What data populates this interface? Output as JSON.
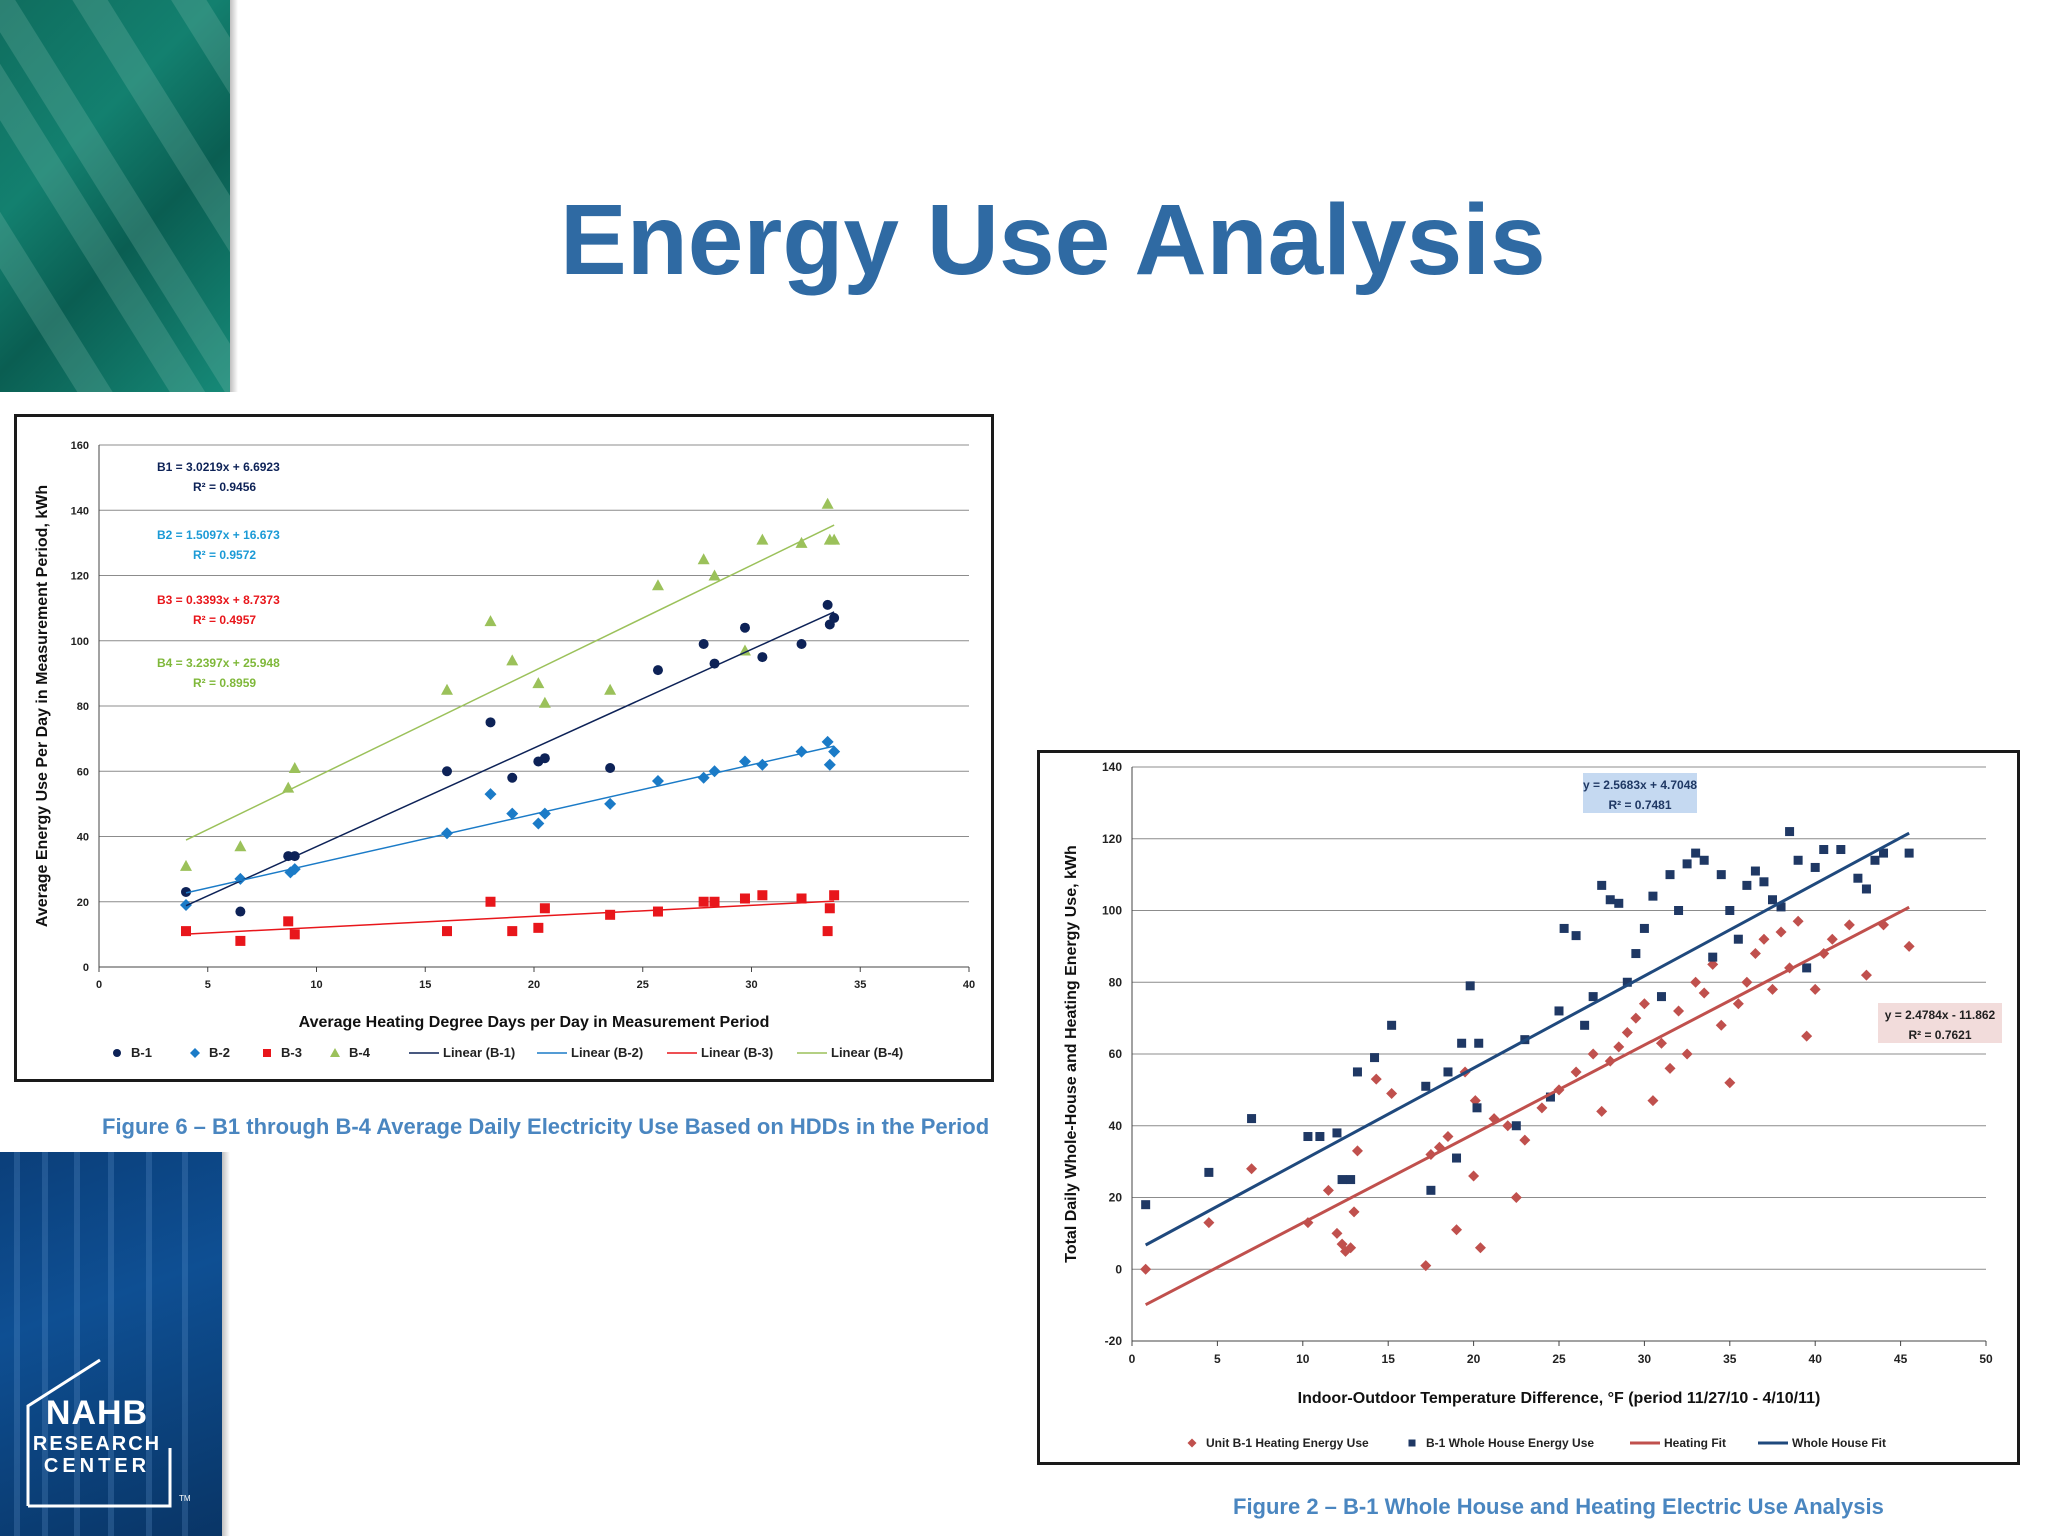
{
  "slide": {
    "title": "Energy Use Analysis",
    "logo": {
      "line1": "NAHB",
      "line2": "RESEARCH",
      "line3": "CENTER",
      "tm": "TM"
    },
    "colors": {
      "title": "#2f6aa3",
      "caption": "#4a86c0",
      "top_band": "#13806f",
      "bottom_band": "#0e4f93"
    }
  },
  "chart_data": [
    {
      "type": "scatter",
      "caption": "Figure 6 – B1 through B-4 Average Daily Electricity Use Based on HDDs in the Period",
      "xlabel": "Average Heating Degree Days per Day in Measurement Period",
      "ylabel": "Average Energy Use Per Day in Measurement Period, kWh",
      "xlim": [
        0,
        40
      ],
      "ylim": [
        0,
        160
      ],
      "xticks": [
        0,
        5,
        10,
        15,
        20,
        25,
        30,
        35,
        40
      ],
      "yticks": [
        0,
        20,
        40,
        60,
        80,
        100,
        120,
        140,
        160
      ],
      "grid": "horizontal",
      "legend_position": "bottom",
      "series": [
        {
          "name": "B-1",
          "marker": "circle",
          "color": "#0d2257",
          "points": [
            [
              4,
              23
            ],
            [
              6.5,
              17
            ],
            [
              8.7,
              34
            ],
            [
              9,
              34
            ],
            [
              16,
              60
            ],
            [
              18,
              75
            ],
            [
              19,
              58
            ],
            [
              20.2,
              63
            ],
            [
              20.5,
              64
            ],
            [
              23.5,
              61
            ],
            [
              25.7,
              91
            ],
            [
              27.8,
              99
            ],
            [
              28.3,
              93
            ],
            [
              29.7,
              104
            ],
            [
              30.5,
              95
            ],
            [
              32.3,
              99
            ],
            [
              33.5,
              111
            ],
            [
              33.6,
              105
            ],
            [
              33.8,
              107
            ]
          ],
          "fit": {
            "name": "Linear (B-1)",
            "slope": 3.0219,
            "intercept": 6.6923,
            "x_range": [
              4,
              33.8
            ]
          }
        },
        {
          "name": "B-2",
          "marker": "diamond",
          "color": "#1b7bc7",
          "points": [
            [
              4,
              19
            ],
            [
              6.5,
              27
            ],
            [
              8.8,
              29
            ],
            [
              9,
              30
            ],
            [
              16,
              41
            ],
            [
              18,
              53
            ],
            [
              19,
              47
            ],
            [
              20.2,
              44
            ],
            [
              20.5,
              47
            ],
            [
              23.5,
              50
            ],
            [
              25.7,
              57
            ],
            [
              27.8,
              58
            ],
            [
              28.3,
              60
            ],
            [
              29.7,
              63
            ],
            [
              30.5,
              62
            ],
            [
              32.3,
              66
            ],
            [
              33.5,
              69
            ],
            [
              33.6,
              62
            ],
            [
              33.8,
              66
            ]
          ],
          "fit": {
            "name": "Linear (B-2)",
            "slope": 1.5097,
            "intercept": 16.673,
            "x_range": [
              4,
              33.8
            ]
          }
        },
        {
          "name": "B-3",
          "marker": "square",
          "color": "#e8161b",
          "points": [
            [
              4,
              11
            ],
            [
              6.5,
              8
            ],
            [
              8.7,
              14
            ],
            [
              9,
              10
            ],
            [
              16,
              11
            ],
            [
              18,
              20
            ],
            [
              19,
              11
            ],
            [
              20.2,
              12
            ],
            [
              20.5,
              18
            ],
            [
              23.5,
              16
            ],
            [
              25.7,
              17
            ],
            [
              27.8,
              20
            ],
            [
              28.3,
              20
            ],
            [
              29.7,
              21
            ],
            [
              30.5,
              22
            ],
            [
              32.3,
              21
            ],
            [
              33.5,
              11
            ],
            [
              33.6,
              18
            ],
            [
              33.8,
              22
            ]
          ],
          "fit": {
            "name": "Linear (B-3)",
            "slope": 0.3393,
            "intercept": 8.7373,
            "x_range": [
              4,
              33.8
            ]
          }
        },
        {
          "name": "B-4",
          "marker": "triangle",
          "color": "#9bc15a",
          "points": [
            [
              4,
              31
            ],
            [
              6.5,
              37
            ],
            [
              8.7,
              55
            ],
            [
              9,
              61
            ],
            [
              16,
              85
            ],
            [
              18,
              106
            ],
            [
              19,
              94
            ],
            [
              20.2,
              87
            ],
            [
              20.5,
              81
            ],
            [
              23.5,
              85
            ],
            [
              25.7,
              117
            ],
            [
              27.8,
              125
            ],
            [
              28.3,
              120
            ],
            [
              29.7,
              97
            ],
            [
              30.5,
              131
            ],
            [
              32.3,
              130
            ],
            [
              33.5,
              142
            ],
            [
              33.6,
              131
            ],
            [
              33.8,
              131
            ]
          ],
          "fit": {
            "name": "Linear (B-4)",
            "slope": 3.2397,
            "intercept": 25.948,
            "x_range": [
              4,
              33.8
            ]
          }
        }
      ],
      "annotations": [
        {
          "eq": "B1 = 3.0219x + 6.6923",
          "r2": "R² = 0.9456",
          "color": "#0d2257"
        },
        {
          "eq": "B2 = 1.5097x + 16.673",
          "r2": "R² = 0.9572",
          "color": "#1b9ad6"
        },
        {
          "eq": "B3 = 0.3393x + 8.7373",
          "r2": "R² = 0.4957",
          "color": "#e8161b"
        },
        {
          "eq": "B4 = 3.2397x + 25.948",
          "r2": "R² = 0.8959",
          "color": "#7fb83a"
        }
      ]
    },
    {
      "type": "scatter",
      "caption": "Figure 2 – B-1 Whole House and Heating Electric Use Analysis",
      "xlabel": "Indoor-Outdoor Temperature Difference, °F (period 11/27/10 - 4/10/11)",
      "ylabel": "Total Daily Whole-House and Heating Energy Use, kWh",
      "xlim": [
        0,
        50
      ],
      "ylim": [
        -20,
        140
      ],
      "xticks": [
        0,
        5,
        10,
        15,
        20,
        25,
        30,
        35,
        40,
        45,
        50
      ],
      "yticks": [
        -20,
        0,
        20,
        40,
        60,
        80,
        100,
        120,
        140
      ],
      "grid": "horizontal",
      "legend_position": "bottom",
      "series": [
        {
          "name": "Unit B-1 Heating Energy Use",
          "marker": "diamond",
          "color": "#c0504d",
          "points": [
            [
              0.8,
              0
            ],
            [
              4.5,
              13
            ],
            [
              7,
              28
            ],
            [
              10.3,
              13
            ],
            [
              11.5,
              22
            ],
            [
              12,
              10
            ],
            [
              12.3,
              7
            ],
            [
              12.5,
              5
            ],
            [
              12.8,
              6
            ],
            [
              13,
              16
            ],
            [
              13.2,
              33
            ],
            [
              14.3,
              53
            ],
            [
              15.2,
              49
            ],
            [
              17.2,
              1
            ],
            [
              17.5,
              32
            ],
            [
              18,
              34
            ],
            [
              18.5,
              37
            ],
            [
              19,
              11
            ],
            [
              19.5,
              55
            ],
            [
              20,
              26
            ],
            [
              20.1,
              47
            ],
            [
              20.4,
              6
            ],
            [
              21.2,
              42
            ],
            [
              22,
              40
            ],
            [
              22.5,
              20
            ],
            [
              23,
              36
            ],
            [
              24,
              45
            ],
            [
              25,
              50
            ],
            [
              26,
              55
            ],
            [
              27,
              60
            ],
            [
              27.5,
              44
            ],
            [
              28,
              58
            ],
            [
              28.5,
              62
            ],
            [
              29,
              66
            ],
            [
              29.5,
              70
            ],
            [
              30,
              74
            ],
            [
              30.5,
              47
            ],
            [
              31,
              63
            ],
            [
              31.5,
              56
            ],
            [
              32,
              72
            ],
            [
              32.5,
              60
            ],
            [
              33,
              80
            ],
            [
              33.5,
              77
            ],
            [
              34,
              85
            ],
            [
              34.5,
              68
            ],
            [
              35,
              52
            ],
            [
              35.5,
              74
            ],
            [
              36,
              80
            ],
            [
              36.5,
              88
            ],
            [
              37,
              92
            ],
            [
              37.5,
              78
            ],
            [
              38,
              94
            ],
            [
              38.5,
              84
            ],
            [
              39,
              97
            ],
            [
              39.5,
              65
            ],
            [
              40,
              78
            ],
            [
              40.5,
              88
            ],
            [
              41,
              92
            ],
            [
              42,
              96
            ],
            [
              43,
              82
            ],
            [
              44,
              96
            ],
            [
              45.5,
              90
            ]
          ],
          "fit": {
            "name": "Heating Fit",
            "slope": 2.4784,
            "intercept": -11.862,
            "x_range": [
              0.8,
              45.5
            ]
          }
        },
        {
          "name": "B-1 Whole House Energy Use",
          "marker": "square",
          "color": "#1f3864",
          "points": [
            [
              0.8,
              18
            ],
            [
              4.5,
              27
            ],
            [
              7,
              42
            ],
            [
              10.3,
              37
            ],
            [
              11,
              37
            ],
            [
              12,
              38
            ],
            [
              12.3,
              25
            ],
            [
              12.8,
              25
            ],
            [
              13.2,
              55
            ],
            [
              14.2,
              59
            ],
            [
              15.2,
              68
            ],
            [
              17.2,
              51
            ],
            [
              17.5,
              22
            ],
            [
              18.5,
              55
            ],
            [
              19,
              31
            ],
            [
              19.3,
              63
            ],
            [
              19.8,
              79
            ],
            [
              20.2,
              45
            ],
            [
              20.3,
              63
            ],
            [
              22.5,
              40
            ],
            [
              23,
              64
            ],
            [
              24.5,
              48
            ],
            [
              25,
              72
            ],
            [
              25.3,
              95
            ],
            [
              26,
              93
            ],
            [
              26.5,
              68
            ],
            [
              27,
              76
            ],
            [
              27.5,
              107
            ],
            [
              28,
              103
            ],
            [
              28.5,
              102
            ],
            [
              29,
              80
            ],
            [
              29.5,
              88
            ],
            [
              30,
              95
            ],
            [
              30.5,
              104
            ],
            [
              31,
              76
            ],
            [
              31.5,
              110
            ],
            [
              32,
              100
            ],
            [
              32.5,
              113
            ],
            [
              33,
              116
            ],
            [
              33.5,
              114
            ],
            [
              34,
              87
            ],
            [
              34.5,
              110
            ],
            [
              35,
              100
            ],
            [
              35.5,
              92
            ],
            [
              36,
              107
            ],
            [
              36.5,
              111
            ],
            [
              37,
              108
            ],
            [
              37.5,
              103
            ],
            [
              38,
              101
            ],
            [
              38.5,
              122
            ],
            [
              39,
              114
            ],
            [
              39.5,
              84
            ],
            [
              40,
              112
            ],
            [
              40.5,
              117
            ],
            [
              41.5,
              117
            ],
            [
              42.5,
              109
            ],
            [
              43,
              106
            ],
            [
              43.5,
              114
            ],
            [
              44,
              116
            ],
            [
              45.5,
              116
            ]
          ],
          "fit": {
            "name": "Whole House Fit",
            "slope": 2.5683,
            "intercept": 4.7048,
            "x_range": [
              0.8,
              45.5
            ]
          }
        }
      ],
      "annotations": [
        {
          "eq": "y = 2.5683x + 4.7048",
          "r2": "R² = 0.7481",
          "color": "#1f3864",
          "bg": "#c5d9f1"
        },
        {
          "eq": "y = 2.4784x - 11.862",
          "r2": "R² = 0.7621",
          "color": "#1f1f1f",
          "bg": "#f2dcdb"
        }
      ]
    }
  ]
}
